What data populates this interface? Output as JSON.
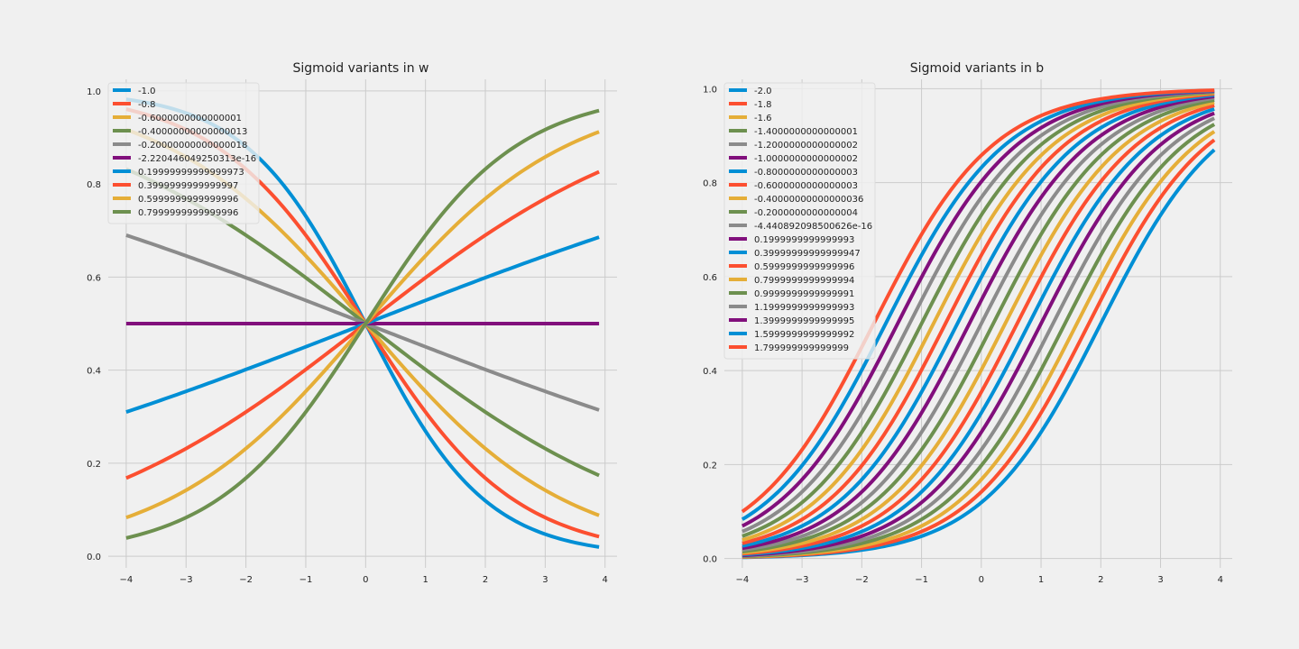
{
  "chart_data": [
    {
      "type": "line",
      "title": "Sigmoid variants in w",
      "xlabel": "",
      "ylabel": "",
      "x_range": [
        -4,
        3.9
      ],
      "xlim": [
        -4.3,
        4.2
      ],
      "ylim": [
        -0.025,
        1.025
      ],
      "xticks": [
        "−4",
        "−3",
        "−2",
        "−1",
        "0",
        "1",
        "2",
        "3",
        "4"
      ],
      "yticks": [
        "0.0",
        "0.2",
        "0.4",
        "0.6",
        "0.8",
        "1.0"
      ],
      "grid": true,
      "legend_position": "upper-left",
      "function": "sigmoid(w*x)",
      "series": [
        {
          "name": "-1.0",
          "w": -1.0,
          "b": 0,
          "color": "#008fd5"
        },
        {
          "name": "-0.8",
          "w": -0.8,
          "b": 0,
          "color": "#fc4f30"
        },
        {
          "name": "-0.6000000000000001",
          "w": -0.6,
          "b": 0,
          "color": "#e5ae38"
        },
        {
          "name": "-0.40000000000000013",
          "w": -0.4,
          "b": 0,
          "color": "#6d904f"
        },
        {
          "name": "-0.20000000000000018",
          "w": -0.2,
          "b": 0,
          "color": "#8b8b8b"
        },
        {
          "name": "-2.220446049250313e-16",
          "w": 0,
          "b": 0,
          "color": "#810f7c"
        },
        {
          "name": "0.19999999999999973",
          "w": 0.2,
          "b": 0,
          "color": "#008fd5"
        },
        {
          "name": "0.3999999999999997",
          "w": 0.4,
          "b": 0,
          "color": "#fc4f30"
        },
        {
          "name": "0.5999999999999996",
          "w": 0.6,
          "b": 0,
          "color": "#e5ae38"
        },
        {
          "name": "0.7999999999999996",
          "w": 0.8,
          "b": 0,
          "color": "#6d904f"
        }
      ]
    },
    {
      "type": "line",
      "title": "Sigmoid variants in b",
      "xlabel": "",
      "ylabel": "",
      "x_range": [
        -4,
        3.9
      ],
      "xlim": [
        -4.3,
        4.2
      ],
      "ylim": [
        -0.02,
        1.02
      ],
      "xticks": [
        "−4",
        "−3",
        "−2",
        "−1",
        "0",
        "1",
        "2",
        "3",
        "4"
      ],
      "yticks": [
        "0.0",
        "0.2",
        "0.4",
        "0.6",
        "0.8",
        "1.0"
      ],
      "grid": true,
      "legend_position": "upper-left",
      "function": "sigmoid(x + b)",
      "series": [
        {
          "name": "-2.0",
          "w": 1,
          "b": -2.0,
          "color": "#008fd5"
        },
        {
          "name": "-1.8",
          "w": 1,
          "b": -1.8,
          "color": "#fc4f30"
        },
        {
          "name": "-1.6",
          "w": 1,
          "b": -1.6,
          "color": "#e5ae38"
        },
        {
          "name": "-1.4000000000000001",
          "w": 1,
          "b": -1.4,
          "color": "#6d904f"
        },
        {
          "name": "-1.2000000000000002",
          "w": 1,
          "b": -1.2,
          "color": "#8b8b8b"
        },
        {
          "name": "-1.0000000000000002",
          "w": 1,
          "b": -1.0,
          "color": "#810f7c"
        },
        {
          "name": "-0.8000000000000003",
          "w": 1,
          "b": -0.8,
          "color": "#008fd5"
        },
        {
          "name": "-0.6000000000000003",
          "w": 1,
          "b": -0.6,
          "color": "#fc4f30"
        },
        {
          "name": "-0.40000000000000036",
          "w": 1,
          "b": -0.4,
          "color": "#e5ae38"
        },
        {
          "name": "-0.2000000000000004",
          "w": 1,
          "b": -0.2,
          "color": "#6d904f"
        },
        {
          "name": "-4.440892098500626e-16",
          "w": 1,
          "b": 0,
          "color": "#8b8b8b"
        },
        {
          "name": "0.1999999999999993",
          "w": 1,
          "b": 0.2,
          "color": "#810f7c"
        },
        {
          "name": "0.39999999999999947",
          "w": 1,
          "b": 0.4,
          "color": "#008fd5"
        },
        {
          "name": "0.5999999999999996",
          "w": 1,
          "b": 0.6,
          "color": "#fc4f30"
        },
        {
          "name": "0.7999999999999994",
          "w": 1,
          "b": 0.8,
          "color": "#e5ae38"
        },
        {
          "name": "0.9999999999999991",
          "w": 1,
          "b": 1.0,
          "color": "#6d904f"
        },
        {
          "name": "1.1999999999999993",
          "w": 1,
          "b": 1.2,
          "color": "#8b8b8b"
        },
        {
          "name": "1.3999999999999995",
          "w": 1,
          "b": 1.4,
          "color": "#810f7c"
        },
        {
          "name": "1.5999999999999992",
          "w": 1,
          "b": 1.6,
          "color": "#008fd5"
        },
        {
          "name": "1.799999999999999",
          "w": 1,
          "b": 1.8,
          "color": "#fc4f30"
        }
      ]
    }
  ],
  "style": {
    "background": "#f0f0f0",
    "grid_color": "#cbcbcb",
    "text_color": "#222222",
    "legend_bg": "#f0f0f0",
    "legend_border": "#dddddd"
  }
}
